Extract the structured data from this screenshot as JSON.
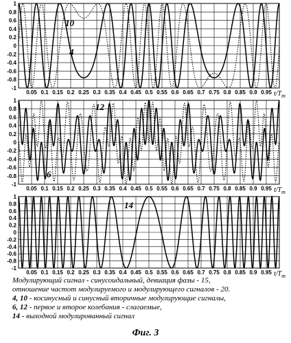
{
  "chart_data": [
    {
      "type": "line",
      "panel": "top",
      "x_label": "t/T",
      "x_label_sub": "m",
      "xlim": [
        0,
        1
      ],
      "ylim": [
        -1,
        1
      ],
      "x_ticks": [
        "0.05",
        "0.1",
        "0.15",
        "0.2",
        "0.25",
        "0.3",
        "0.35",
        "0.4",
        "0.45",
        "0.5",
        "0.55",
        "0.6",
        "0.65",
        "0.7",
        "0.75",
        "0.8",
        "0.85",
        "0.9",
        "0.95"
      ],
      "y_ticks": [
        "1",
        "0.8",
        "0.6",
        "0.4",
        "0.2",
        "0",
        "-0.2",
        "-0.4",
        "-0.6",
        "-0.8",
        "-1"
      ],
      "grid": true,
      "series": [
        {
          "name": "4",
          "style": "solid",
          "formula": "cos(15*sin(2*pi*t))"
        },
        {
          "name": "10",
          "style": "dotted",
          "formula": "sin(15*sin(2*pi*t))"
        }
      ]
    },
    {
      "type": "line",
      "panel": "middle",
      "x_label": "t/T",
      "x_label_sub": "m",
      "xlim": [
        0,
        1
      ],
      "ylim": [
        -1,
        1
      ],
      "x_ticks": [
        "0.05",
        "0.1",
        "0.15",
        "0.2",
        "0.25",
        "0.3",
        "0.35",
        "0.4",
        "0.45",
        "0.5",
        "0.55",
        "0.6",
        "0.65",
        "0.7",
        "0.75",
        "0.8",
        "0.85",
        "0.9",
        "0.95"
      ],
      "y_ticks": [
        "1",
        "0.8",
        "0.6",
        "0.4",
        "0.2",
        "0",
        "-0.2",
        "-0.4",
        "-0.6",
        "-0.8",
        "-1"
      ],
      "grid": true,
      "series": [
        {
          "name": "6",
          "style": "solid",
          "formula": "cos(15*sin(2*pi*t))*cos(40*pi*t)"
        },
        {
          "name": "12",
          "style": "dotted",
          "formula": "-sin(15*sin(2*pi*t))*sin(40*pi*t)"
        }
      ]
    },
    {
      "type": "line",
      "panel": "bottom",
      "x_label": "t/T",
      "x_label_sub": "m",
      "xlim": [
        0,
        1
      ],
      "ylim": [
        -1,
        1
      ],
      "x_ticks": [
        "0.05",
        "0.1",
        "0.15",
        "0.2",
        "0.25",
        "0.3",
        "0.35",
        "0.4",
        "0.45",
        "0.5",
        "0.55",
        "0.6",
        "0.65",
        "0.7",
        "0.75",
        "0.8",
        "0.85",
        "0.9",
        "0.95"
      ],
      "y_ticks": [
        "1",
        "0.8",
        "0.6",
        "0.4",
        "0.2",
        "0",
        "-0.2",
        "-0.4",
        "-0.6",
        "-0.8",
        "-1"
      ],
      "grid": true,
      "series": [
        {
          "name": "14",
          "style": "solid",
          "formula": "cos(40*pi*t + 15*sin(2*pi*t))"
        }
      ]
    }
  ],
  "caption": {
    "line1": "Модулирующий сигнал - синусоидальный,  девиация фазы - 15,",
    "line2": "отношение частот модулируемого и модулирующего сигналов - 20.",
    "line3_bold": "4, 10",
    "line3_rest": " - косинусный и синусный вторичные модулирующие сигналы,",
    "line4_bold": "6, 12",
    "line4_rest": " - первое и второе колебания - слагаемые,",
    "line5_bold": "14",
    "line5_rest": " - выходной модулированный сигнал"
  },
  "figure_title": "Фиг. 3"
}
